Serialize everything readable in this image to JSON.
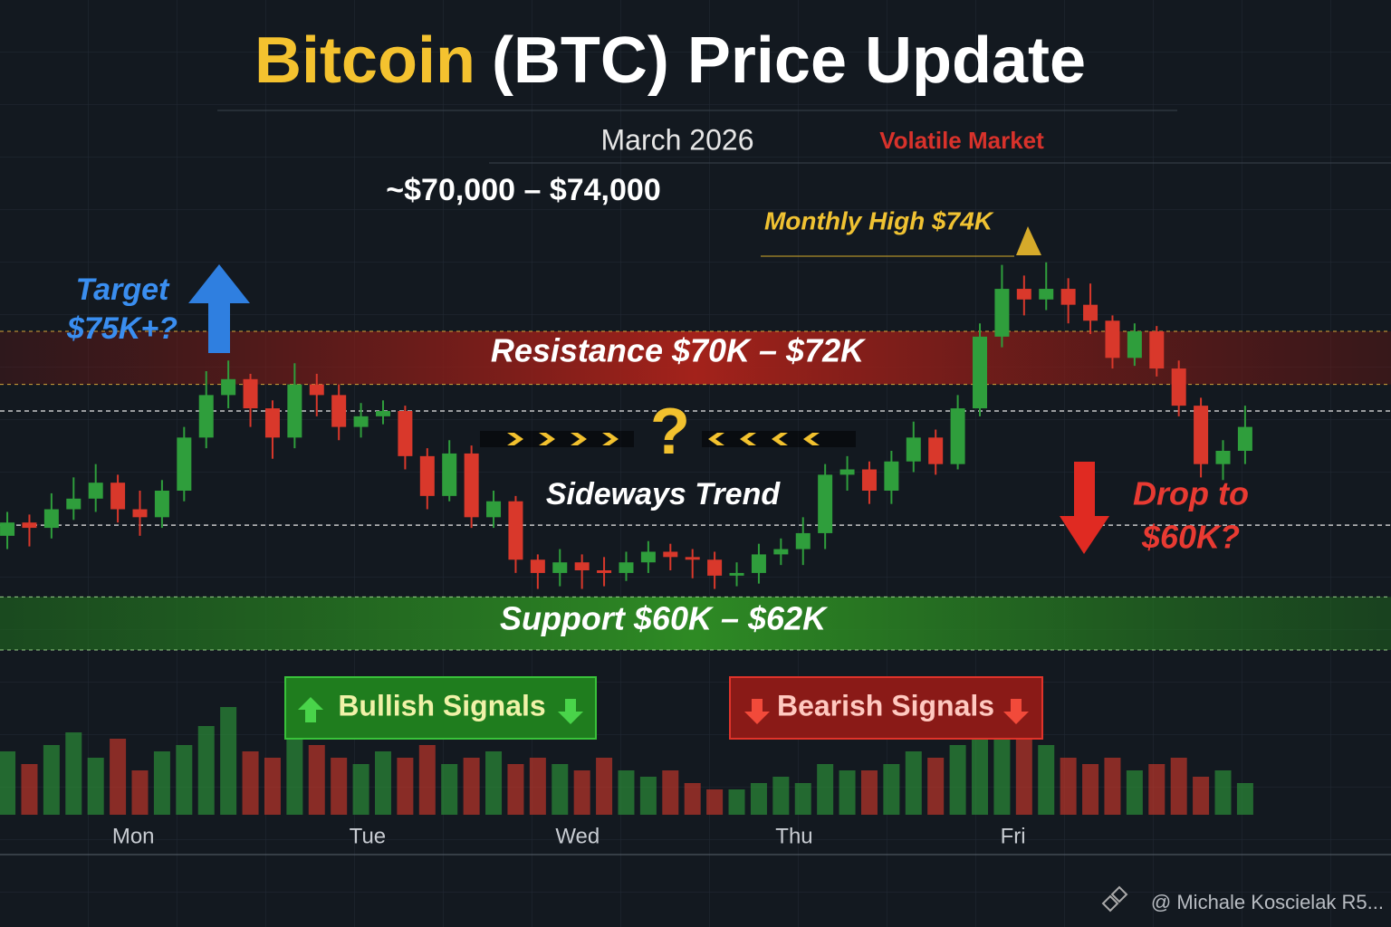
{
  "header": {
    "title_highlight": "Bitcoin",
    "title_rest": "(BTC) Price Update",
    "date": "March 2026",
    "status": "Volatile Market",
    "price_range": "~$70,000 – $74,000"
  },
  "chart_data": {
    "type": "candlestick",
    "xlim": [
      -0.33,
      62.6
    ],
    "xticks": [
      {
        "value": 5.7,
        "label": "Mon"
      },
      {
        "value": 16.3,
        "label": "Tue"
      },
      {
        "value": 25.8,
        "label": "Wed"
      },
      {
        "value": 35.6,
        "label": "Thu"
      },
      {
        "value": 45.5,
        "label": "Fri"
      }
    ],
    "ylim": [
      60,
      75
    ],
    "y2lim": [
      0,
      100
    ],
    "up_color": "#2f9e3c",
    "down_color": "#d9382b",
    "open": [
      64.3,
      64.8,
      64.6,
      65.3,
      65.7,
      66.3,
      65.3,
      65.0,
      66.0,
      68.0,
      69.6,
      70.2,
      69.1,
      68.0,
      70.0,
      69.6,
      68.4,
      68.8,
      69.0,
      67.3,
      65.8,
      67.4,
      65.0,
      65.6,
      63.4,
      62.9,
      63.3,
      63.0,
      62.9,
      63.3,
      63.7,
      63.5,
      63.4,
      62.8,
      62.9,
      63.6,
      63.8,
      64.4,
      66.6,
      66.8,
      66.0,
      67.1,
      68.0,
      67.0,
      69.1,
      71.8,
      73.6,
      73.2,
      73.6,
      73.0,
      72.4,
      71.0,
      72.0,
      70.6,
      69.2,
      67.0,
      67.5
    ],
    "high": [
      65.2,
      65.1,
      65.9,
      66.5,
      67.0,
      66.6,
      66.0,
      66.4,
      68.4,
      70.5,
      70.9,
      70.4,
      69.4,
      70.8,
      70.4,
      70.0,
      69.3,
      69.4,
      69.2,
      67.6,
      67.9,
      67.7,
      66.0,
      65.8,
      63.6,
      63.8,
      63.6,
      63.5,
      63.7,
      64.1,
      64.0,
      63.8,
      63.7,
      63.3,
      64.0,
      64.2,
      65.0,
      67.0,
      67.3,
      67.1,
      67.5,
      68.6,
      68.3,
      69.6,
      72.3,
      74.5,
      74.1,
      74.6,
      74.0,
      73.8,
      72.6,
      72.3,
      72.2,
      70.9,
      69.5,
      67.9,
      69.2
    ],
    "low": [
      63.8,
      63.9,
      64.2,
      64.9,
      65.2,
      64.8,
      64.3,
      64.6,
      65.6,
      67.6,
      69.1,
      68.4,
      67.2,
      67.6,
      68.8,
      67.9,
      68.0,
      68.5,
      66.8,
      65.3,
      65.6,
      64.6,
      64.6,
      62.9,
      62.3,
      62.4,
      62.3,
      62.4,
      62.6,
      62.9,
      63.0,
      62.7,
      62.3,
      62.4,
      62.5,
      63.2,
      63.2,
      63.8,
      66.0,
      65.5,
      65.5,
      66.7,
      66.6,
      66.8,
      68.8,
      71.4,
      72.6,
      72.8,
      72.3,
      71.9,
      70.6,
      70.7,
      70.3,
      68.8,
      66.5,
      66.4,
      67.0
    ],
    "close": [
      64.8,
      64.6,
      65.3,
      65.7,
      66.3,
      65.3,
      65.0,
      66.0,
      68.0,
      69.6,
      70.2,
      69.1,
      68.0,
      70.0,
      69.6,
      68.4,
      68.8,
      69.0,
      67.3,
      65.8,
      67.4,
      65.0,
      65.6,
      63.4,
      62.9,
      63.3,
      63.0,
      62.9,
      63.3,
      63.7,
      63.5,
      63.4,
      62.8,
      62.9,
      63.6,
      63.8,
      64.4,
      66.6,
      66.8,
      66.0,
      67.1,
      68.0,
      67.0,
      69.1,
      71.8,
      73.6,
      73.2,
      73.6,
      73.0,
      72.4,
      71.0,
      72.0,
      70.6,
      69.2,
      67.0,
      67.5,
      68.4
    ],
    "volume": [
      50,
      40,
      55,
      65,
      45,
      60,
      35,
      50,
      55,
      70,
      85,
      50,
      45,
      60,
      55,
      45,
      40,
      50,
      45,
      55,
      40,
      45,
      50,
      40,
      45,
      40,
      35,
      45,
      35,
      30,
      35,
      25,
      20,
      20,
      25,
      30,
      25,
      40,
      35,
      35,
      40,
      50,
      45,
      55,
      70,
      85,
      75,
      55,
      45,
      40,
      45,
      35,
      40,
      45,
      30,
      35,
      25
    ],
    "reference_lines": [
      69,
      64.7
    ],
    "resistance": {
      "label": "Resistance $70K – $72K",
      "range": [
        70,
        72
      ]
    },
    "support": {
      "label": "Support $60K – $62K",
      "range": [
        60,
        62
      ]
    },
    "annotations": {
      "monthly_high": "Monthly High $74K",
      "target": [
        "Target",
        "$75K+?"
      ],
      "drop": [
        "Drop to",
        "$60K?"
      ],
      "question": "?",
      "sideways": "Sideways Trend"
    }
  },
  "signals": {
    "bullish": "Bullish Signals",
    "bearish": "Bearish Signals"
  },
  "watermark": "@ Michale Koscielak R5..."
}
